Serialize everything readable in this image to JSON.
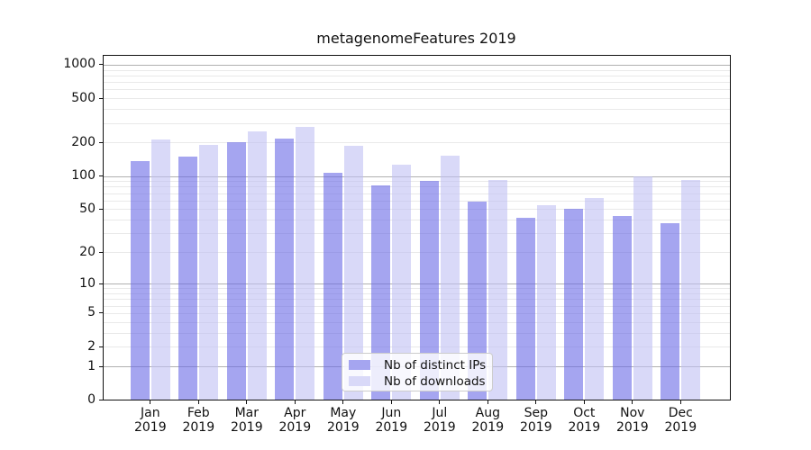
{
  "title": "metagenomeFeatures 2019",
  "chart_data": {
    "type": "bar",
    "title": "metagenomeFeatures 2019",
    "categories": [
      "Jan 2019",
      "Feb 2019",
      "Mar 2019",
      "Apr 2019",
      "May 2019",
      "Jun 2019",
      "Jul 2019",
      "Aug 2019",
      "Sep 2019",
      "Oct 2019",
      "Nov 2019",
      "Dec 2019"
    ],
    "series": [
      {
        "name": "Nb of distinct IPs",
        "color": "#a5a5f0",
        "bar_rgba": "rgba(105,105,230,0.6)",
        "values": [
          136,
          149,
          202,
          219,
          106,
          83,
          91,
          59,
          42,
          50,
          43,
          37
        ]
      },
      {
        "name": "Nb of downloads",
        "color": "#d9d9f8",
        "bar_rgba": "rgba(192,192,243,0.6)",
        "values": [
          213,
          191,
          253,
          277,
          186,
          127,
          152,
          92,
          54,
          63,
          100,
          92
        ]
      }
    ],
    "xlabel": "",
    "ylabel": "",
    "yscale": "log1p",
    "y_ticks": [
      0,
      1,
      2,
      5,
      10,
      20,
      50,
      100,
      200,
      500,
      1000
    ],
    "ylim": [
      0,
      1235
    ],
    "grid": true,
    "legend_position": "lower-center",
    "colors": {
      "major_grid": "#b0b0b0",
      "minor_grid": "#e9e9e9",
      "axis": "#111111",
      "text": "#111111",
      "background": "#ffffff"
    }
  }
}
